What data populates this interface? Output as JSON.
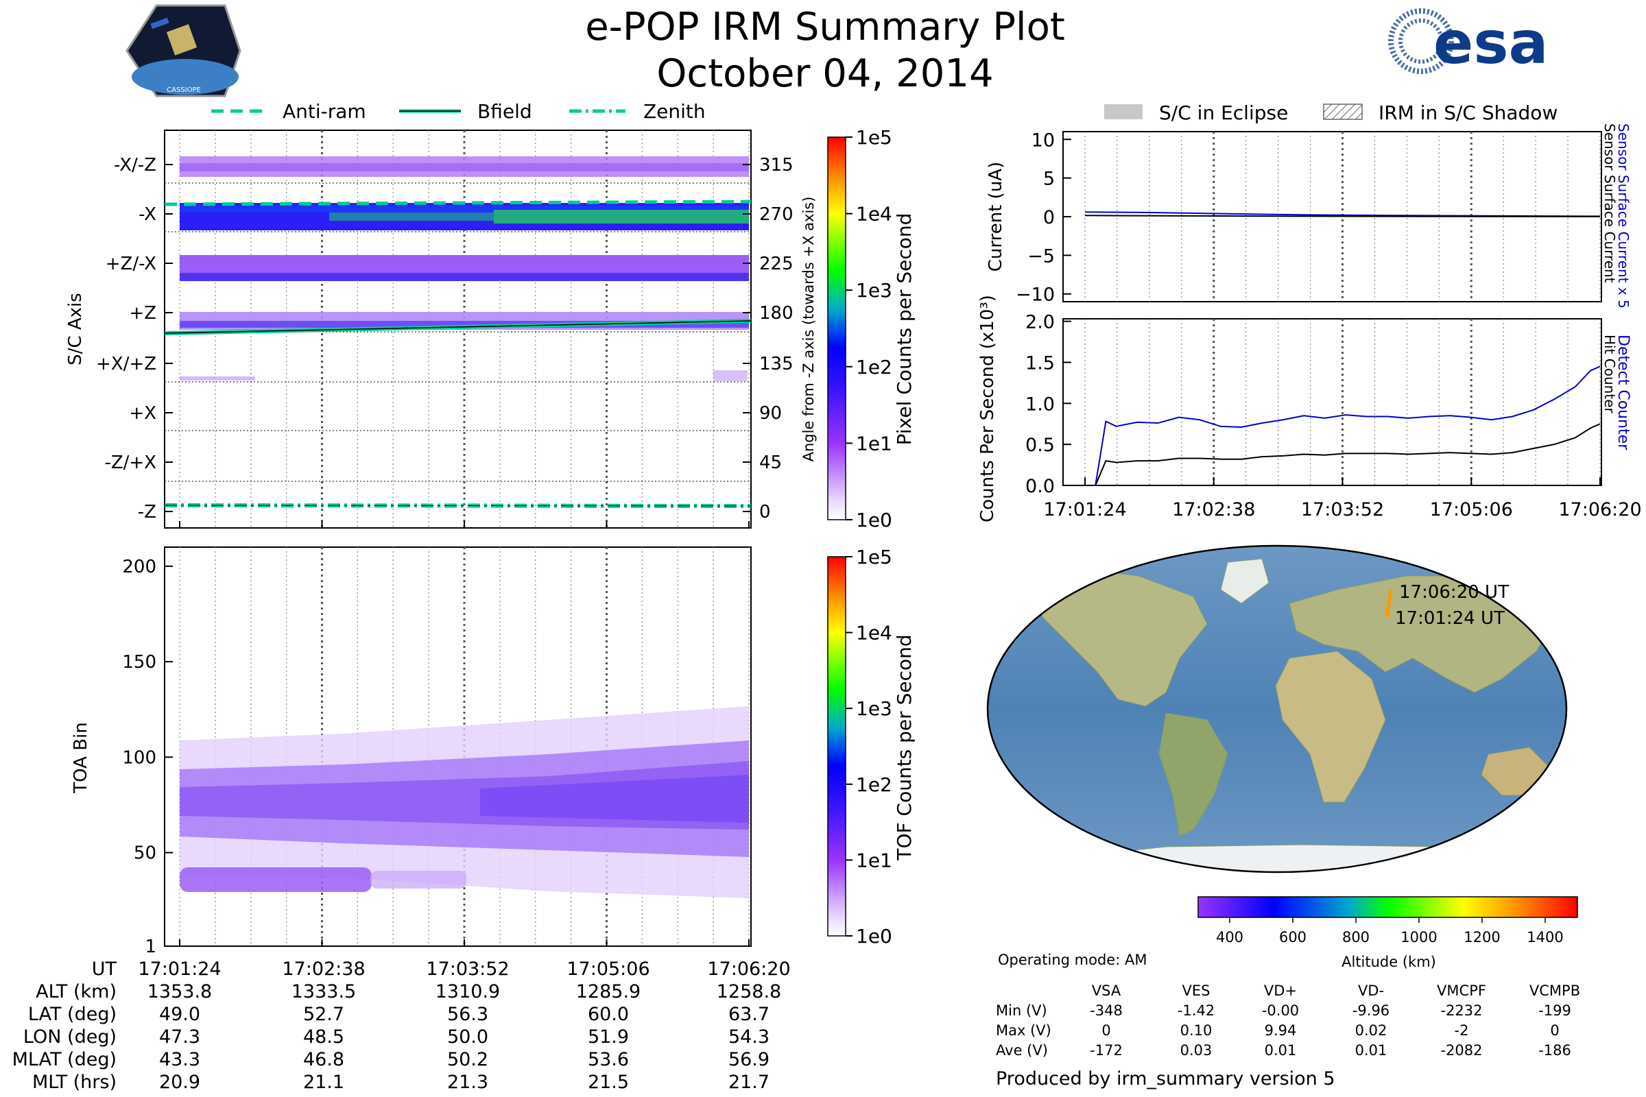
{
  "header": {
    "title": "e-POP IRM Summary Plot",
    "date": "October 04, 2014",
    "logo_left_text": "CASSIOPE",
    "logo_right_text": "esa"
  },
  "colors": {
    "series_blue": "#0000cc",
    "series_black": "#000000",
    "orbit_track": "#ff9900",
    "anti_ram": "#00cc99",
    "bfield": "#00cc99",
    "zenith": "#00cc99",
    "eclipse_gray": "#c8c8c8"
  },
  "legend_top": {
    "items": [
      {
        "label": "Anti-ram",
        "style": "dashed"
      },
      {
        "label": "Bfield",
        "style": "solid"
      },
      {
        "label": "Zenith",
        "style": "dashdot"
      }
    ]
  },
  "legend_right": {
    "items": [
      {
        "label": "S/C in Eclipse",
        "style": "fill"
      },
      {
        "label": "IRM in S/C Shadow",
        "style": "hatch"
      }
    ]
  },
  "time_ticks": [
    "17:01:24",
    "17:02:38",
    "17:03:52",
    "17:05:06",
    "17:06:20"
  ],
  "chart_data": [
    {
      "id": "pixel-plot",
      "type": "heatmap",
      "ylabel": "S/C Axis",
      "y_categories": [
        "-X/-Z",
        "-X",
        "+Z/-X",
        "+Z",
        "+X/+Z",
        "+X",
        "-Z/+X",
        "-Z"
      ],
      "y2label": "Angle from -Z axis (towards +X axis)",
      "y2_ticks": [
        315,
        270,
        225,
        180,
        135,
        90,
        45,
        0
      ],
      "colorbar": {
        "label": "Pixel Counts per Second",
        "scale": "log",
        "ticks": [
          "1e0",
          "1e1",
          "1e2",
          "1e3",
          "1e4",
          "1e5"
        ]
      },
      "lines": [
        {
          "name": "Anti-ram",
          "angle_start": 272,
          "angle_end": 274
        },
        {
          "name": "Bfield",
          "angle_start": 167,
          "angle_end": 176
        },
        {
          "name": "Zenith",
          "angle_start": 0,
          "angle_end": 0
        }
      ],
      "bands": [
        {
          "angle": 315,
          "intensity": "low"
        },
        {
          "angle": 270,
          "intensity": "high"
        },
        {
          "angle": 225,
          "intensity": "medium"
        },
        {
          "angle": 180,
          "intensity": "low"
        }
      ]
    },
    {
      "id": "tof-plot",
      "type": "heatmap",
      "ylabel": "TOA Bin",
      "yticks": [
        1,
        50,
        100,
        150,
        200
      ],
      "ylim": [
        1,
        210
      ],
      "colorbar": {
        "label": "TOF Counts per Second",
        "scale": "log",
        "ticks": [
          "1e0",
          "1e1",
          "1e2",
          "1e3",
          "1e4",
          "1e5"
        ]
      },
      "populations": [
        {
          "center_start": 77,
          "center_end": 82,
          "spread": 22
        },
        {
          "center": 33,
          "spread": 6,
          "fades_by": "17:04:30"
        }
      ]
    },
    {
      "id": "current-plot",
      "type": "line",
      "ylabel": "Current (uA)",
      "ylim": [
        -11,
        11
      ],
      "yticks": [
        -10,
        -5,
        0,
        5,
        10
      ],
      "right_label_blue": "Sensor Surface Current x 5",
      "right_label_black": "Sensor Surface Current",
      "series": [
        {
          "name": "Sensor Surface Current x 5",
          "color": "blue",
          "x": [
            0,
            0.5,
            1.0,
            2.0,
            3.0,
            4.0,
            4.94
          ],
          "values": [
            0.6,
            0.55,
            0.45,
            0.25,
            0.15,
            0.1,
            0.05
          ]
        },
        {
          "name": "Sensor Surface Current",
          "color": "black",
          "x": [
            0,
            0.5,
            1.0,
            2.0,
            3.0,
            4.0,
            4.94
          ],
          "values": [
            0.15,
            0.12,
            0.1,
            0.06,
            0.03,
            0.02,
            0.01
          ]
        }
      ]
    },
    {
      "id": "counts-plot",
      "type": "line",
      "ylabel": "Counts Per Second (x10³)",
      "ylim": [
        0,
        2.0
      ],
      "yticks": [
        0.0,
        0.5,
        1.0,
        1.5,
        2.0
      ],
      "right_label_blue": "Detect Counter",
      "right_label_black": "Hit Counter",
      "series": [
        {
          "name": "Detect Counter",
          "color": "blue",
          "x": [
            0,
            0.1,
            0.2,
            0.3,
            0.5,
            0.7,
            0.9,
            1.1,
            1.3,
            1.5,
            1.7,
            1.9,
            2.1,
            2.3,
            2.5,
            2.7,
            2.9,
            3.1,
            3.3,
            3.5,
            3.7,
            3.9,
            4.1,
            4.3,
            4.5,
            4.7,
            4.85,
            4.94
          ],
          "values": [
            0.0,
            0.0,
            0.78,
            0.72,
            0.77,
            0.76,
            0.83,
            0.8,
            0.72,
            0.71,
            0.76,
            0.8,
            0.85,
            0.82,
            0.86,
            0.84,
            0.84,
            0.82,
            0.84,
            0.85,
            0.83,
            0.8,
            0.84,
            0.92,
            1.05,
            1.2,
            1.4,
            1.45
          ]
        },
        {
          "name": "Hit Counter",
          "color": "black",
          "x": [
            0,
            0.1,
            0.2,
            0.3,
            0.5,
            0.7,
            0.9,
            1.1,
            1.3,
            1.5,
            1.7,
            1.9,
            2.1,
            2.3,
            2.5,
            2.7,
            2.9,
            3.1,
            3.3,
            3.5,
            3.7,
            3.9,
            4.1,
            4.3,
            4.5,
            4.7,
            4.85,
            4.94
          ],
          "values": [
            0.0,
            0.0,
            0.3,
            0.28,
            0.3,
            0.3,
            0.33,
            0.33,
            0.32,
            0.32,
            0.35,
            0.36,
            0.38,
            0.37,
            0.39,
            0.39,
            0.39,
            0.38,
            0.39,
            0.4,
            0.39,
            0.38,
            0.4,
            0.45,
            0.5,
            0.58,
            0.7,
            0.75
          ]
        }
      ]
    }
  ],
  "map": {
    "label_end": "17:06:20 UT",
    "label_start": "17:01:24 UT",
    "altitude_colorbar": {
      "label": "Altitude (km)",
      "ticks": [
        "400",
        "600",
        "800",
        "1000",
        "1200",
        "1400"
      ]
    }
  },
  "ephemeris": {
    "rows": [
      {
        "label": "UT",
        "values": [
          "17:01:24",
          "17:02:38",
          "17:03:52",
          "17:05:06",
          "17:06:20"
        ]
      },
      {
        "label": "ALT (km)",
        "values": [
          "1353.8",
          "1333.5",
          "1310.9",
          "1285.9",
          "1258.8"
        ]
      },
      {
        "label": "LAT (deg)",
        "values": [
          "49.0",
          "52.7",
          "56.3",
          "60.0",
          "63.7"
        ]
      },
      {
        "label": "LON (deg)",
        "values": [
          "47.3",
          "48.5",
          "50.0",
          "51.9",
          "54.3"
        ]
      },
      {
        "label": "MLAT (deg)",
        "values": [
          "43.3",
          "46.8",
          "50.2",
          "53.6",
          "56.9"
        ]
      },
      {
        "label": "MLT (hrs)",
        "values": [
          "20.9",
          "21.1",
          "21.3",
          "21.5",
          "21.7"
        ]
      }
    ]
  },
  "voltages": {
    "operating_mode": "Operating mode: AM",
    "columns": [
      "VSA",
      "VES",
      "VD+",
      "VD-",
      "VMCPF",
      "VCMPB"
    ],
    "rows": [
      {
        "label": "Min (V)",
        "values": [
          "-348",
          "-1.42",
          "-0.00",
          "-9.96",
          "-2232",
          "-199"
        ]
      },
      {
        "label": "Max (V)",
        "values": [
          "0",
          "0.10",
          "9.94",
          "0.02",
          "-2",
          "0"
        ]
      },
      {
        "label": "Ave (V)",
        "values": [
          "-172",
          "0.03",
          "0.01",
          "0.01",
          "-2082",
          "-186"
        ]
      }
    ]
  },
  "footer": {
    "produced_by": "Produced by irm_summary version 5"
  }
}
